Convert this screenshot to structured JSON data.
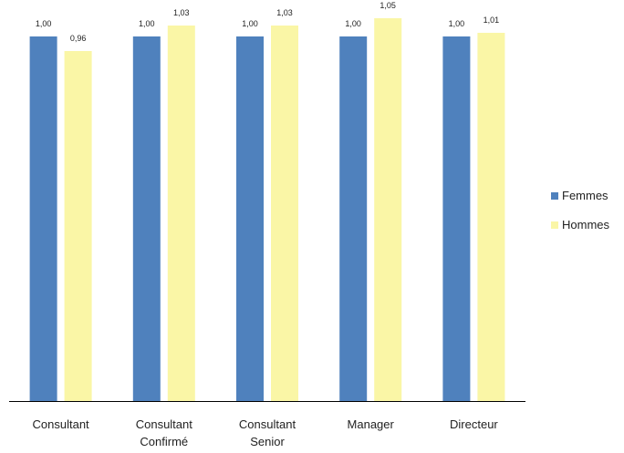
{
  "chart_data": {
    "type": "bar",
    "categories": [
      [
        "Consultant"
      ],
      [
        "Consultant",
        "Confirmé"
      ],
      [
        "Consultant",
        "Senior"
      ],
      [
        "Manager"
      ],
      [
        "Directeur"
      ]
    ],
    "series": [
      {
        "name": "Femmes",
        "color": "#4f81bd",
        "values": [
          1.0,
          1.0,
          1.0,
          1.0,
          1.0
        ],
        "labels": [
          "1,00",
          "1,00",
          "1,00",
          "1,00",
          "1,00"
        ]
      },
      {
        "name": "Hommes",
        "color": "#faf6a6",
        "values": [
          0.96,
          1.03,
          1.03,
          1.05,
          1.01
        ],
        "labels": [
          "0,96",
          "1,03",
          "1,03",
          "1,05",
          "1,01"
        ]
      }
    ],
    "ylim": [
      0,
      1.07
    ],
    "grid": false,
    "legend_position": "right",
    "axis_color": "#000000"
  }
}
